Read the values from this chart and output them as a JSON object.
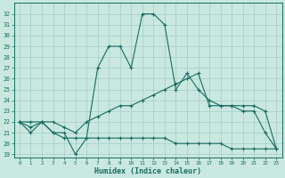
{
  "xlabel": "Humidex (Indice chaleur)",
  "background_color": "#c8e8e0",
  "grid_color": "#a8ccc8",
  "line_color": "#1a6b60",
  "x_values": [
    0,
    1,
    2,
    3,
    4,
    5,
    6,
    7,
    8,
    9,
    10,
    11,
    12,
    13,
    14,
    15,
    16,
    17,
    18,
    19,
    20,
    21,
    22,
    23
  ],
  "series_top": [
    22,
    21,
    22,
    21,
    21,
    19,
    20.5,
    27,
    29,
    29,
    27,
    32,
    32,
    31,
    25,
    26.5,
    25,
    24,
    23.5,
    23.5,
    23,
    23,
    21,
    19.5
  ],
  "series_mid": [
    22,
    21.5,
    22,
    22,
    21.5,
    21,
    22,
    22.5,
    23,
    23.5,
    23.5,
    24,
    24.5,
    25,
    25.5,
    26,
    26.5,
    23.5,
    23.5,
    23.5,
    23.5,
    23.5,
    23,
    19.5
  ],
  "series_bot": [
    22,
    22,
    22,
    21,
    20.5,
    20.5,
    20.5,
    20.5,
    20.5,
    20.5,
    20.5,
    20.5,
    20.5,
    20.5,
    20,
    20,
    20,
    20,
    20,
    19.5,
    19.5,
    19.5,
    19.5,
    19.5
  ],
  "ylim": [
    18.7,
    33.0
  ],
  "yticks": [
    19,
    20,
    21,
    22,
    23,
    24,
    25,
    26,
    27,
    28,
    29,
    30,
    31,
    32
  ],
  "xlim": [
    -0.5,
    23.5
  ],
  "xticks": [
    0,
    1,
    2,
    3,
    4,
    5,
    6,
    7,
    8,
    9,
    10,
    11,
    12,
    13,
    14,
    15,
    16,
    17,
    18,
    19,
    20,
    21,
    22,
    23
  ]
}
